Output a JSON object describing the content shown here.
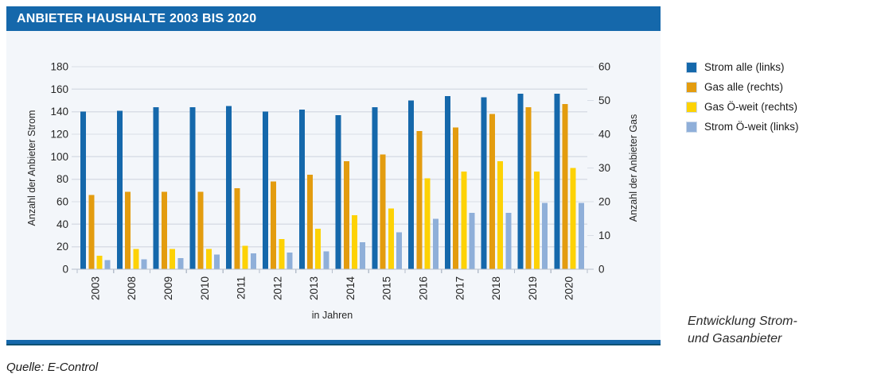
{
  "header": {
    "title": "ANBIETER HAUSHALTE 2003 BIS 2020"
  },
  "chart_data": {
    "type": "bar",
    "categories": [
      "2003",
      "2008",
      "2009",
      "2010",
      "2011",
      "2012",
      "2013",
      "2014",
      "2015",
      "2016",
      "2017",
      "2018",
      "2019",
      "2020"
    ],
    "series": [
      {
        "name": "Strom alle (links)",
        "axis": "left",
        "color": "#1568ab",
        "values": [
          140,
          141,
          144,
          144,
          145,
          140,
          142,
          137,
          144,
          150,
          154,
          153,
          156,
          156
        ]
      },
      {
        "name": "Gas alle (rechts)",
        "axis": "right",
        "color": "#e39c0f",
        "values": [
          22,
          23,
          23,
          23,
          24,
          26,
          28,
          32,
          34,
          41,
          42,
          46,
          48,
          49
        ]
      },
      {
        "name": "Gas Ö-weit (rechts)",
        "axis": "right",
        "color": "#fdd205",
        "values": [
          4,
          6,
          6,
          6,
          7,
          9,
          12,
          16,
          18,
          27,
          29,
          32,
          29,
          30
        ]
      },
      {
        "name": "Strom Ö-weit (links)",
        "axis": "left",
        "color": "#8fafd9",
        "values": [
          8,
          9,
          10,
          13,
          14,
          15,
          16,
          24,
          33,
          45,
          50,
          50,
          59,
          59
        ]
      }
    ],
    "title": "ANBIETER HAUSHALTE 2003 BIS 2020",
    "xlabel": "in Jahren",
    "ylabel_left": "Anzahl der Anbieter Strom",
    "ylabel_right": "Anzahl der Anbieter Gas",
    "y_left": {
      "min": 0,
      "max": 180,
      "step": 20
    },
    "y_right": {
      "min": 0,
      "max": 60,
      "step": 10
    },
    "grid": true,
    "legend_position": "right-outside"
  },
  "caption": {
    "line1": "Entwicklung Strom-",
    "line2": "und Gasanbieter"
  },
  "source": {
    "text": "Quelle: E-Control"
  },
  "colors": {
    "brand_blue": "#1568ab",
    "panel_bg": "#f3f6fa",
    "gridline": "#d9dee7",
    "axis_line": "#b6bfcc",
    "divider_edge": "#0c5173"
  }
}
